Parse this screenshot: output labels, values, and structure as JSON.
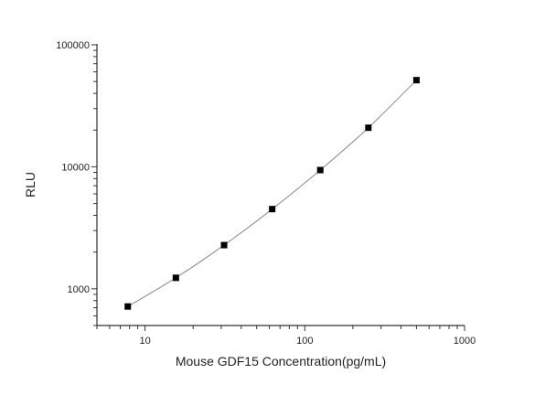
{
  "chart_data": {
    "type": "line",
    "title": "",
    "xlabel": "Mouse GDF15 Concentration(pg/mL)",
    "ylabel": "RLU",
    "xscale": "log",
    "yscale": "log",
    "xlim": [
      5,
      1000
    ],
    "ylim": [
      500,
      100000
    ],
    "xticks": [
      10,
      100,
      1000
    ],
    "xtick_labels": [
      "10",
      "100",
      "1000"
    ],
    "yticks": [
      1000,
      10000,
      100000
    ],
    "ytick_labels": [
      "1000",
      "10000",
      "100000"
    ],
    "grid": false,
    "series": [
      {
        "x": [
          7.8,
          15.6,
          31.25,
          62.5,
          125,
          250,
          500
        ],
        "y": [
          716,
          1230,
          2280,
          4500,
          9400,
          20900,
          51300
        ],
        "marker": "square",
        "color": "#000000",
        "line_color": "#888888"
      }
    ]
  }
}
